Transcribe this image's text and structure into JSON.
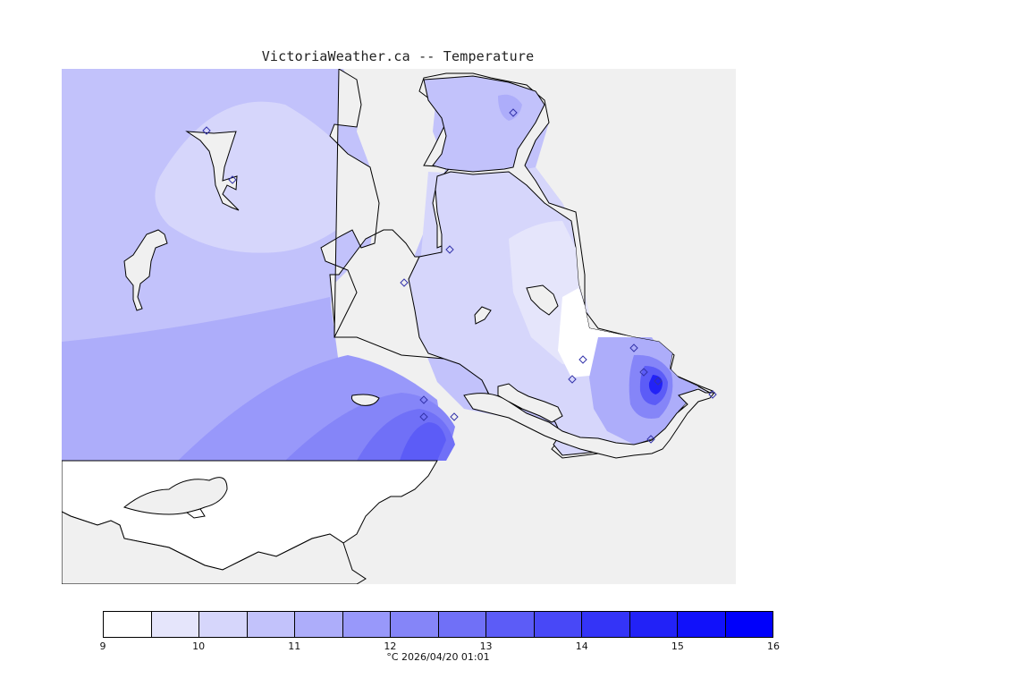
{
  "title": "VictoriaWeather.ca -- Temperature",
  "legend": {
    "ticks": [
      "9",
      "10",
      "11",
      "12",
      "13",
      "14",
      "15",
      "16"
    ],
    "colors": [
      "#ffffff",
      "#e5e5fb",
      "#d6d6fb",
      "#c2c2fb",
      "#adadfa",
      "#9898fa",
      "#8585f8",
      "#7070f7",
      "#5c5cf7",
      "#4848f7",
      "#3434f7",
      "#2222f7",
      "#1111fa",
      "#0000fb"
    ],
    "caption": "°C  2026/04/20 01:01"
  },
  "map": {
    "land_color": "#f0f0f0",
    "water_color": "#ffffff",
    "station_marker_color": "#3333aa",
    "station_count": 15
  }
}
